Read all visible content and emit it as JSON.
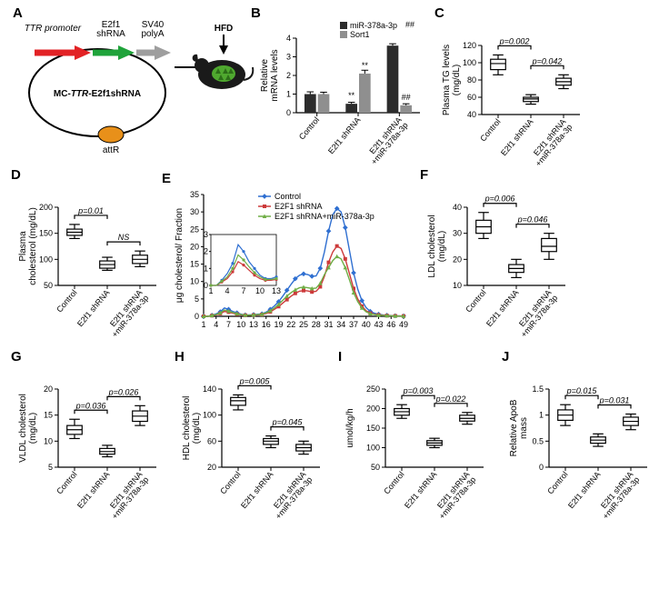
{
  "colors": {
    "control": "#2f6fd1",
    "e2f1": "#cc3a3a",
    "mir": "#6fae46",
    "bar_black": "#2c2c2c",
    "bar_grey": "#8f8f8f",
    "plasmid_red": "#e22225",
    "plasmid_green": "#1fa33a",
    "plasmid_grey": "#9e9e9e",
    "attR": "#e8901a"
  },
  "groups": [
    "Control",
    "E2f1 shRNA",
    "E2f1 shRNA\n+miR-378a-3p"
  ],
  "panelA": {
    "ttr": "TTR promoter",
    "e2f1": "E2f1\nshRNA",
    "sv40": "SV40\npolyA",
    "hfd": "HFD",
    "mc": "MC-TTR-E2f1shRNA",
    "attR": "attR"
  },
  "panelB": {
    "ylabel": "Relative\nmRNA levels",
    "legend1": "miR-378a-3p",
    "legend2": "Sort1",
    "ylim": [
      0,
      4
    ],
    "yticks": [
      0,
      1,
      2,
      3,
      4
    ],
    "data": {
      "mir": {
        "mean": [
          1.0,
          0.48,
          3.6
        ],
        "err": [
          0.12,
          0.08,
          0.1
        ]
      },
      "sort": {
        "mean": [
          1.0,
          2.1,
          0.4
        ],
        "err": [
          0.1,
          0.18,
          0.08
        ]
      }
    },
    "annot": {
      "hash_top": "##",
      "stars": "**",
      "hash_low": "##"
    }
  },
  "panelC": {
    "ylabel": "Plasma TG levels\n(mg/dL)",
    "ylim": [
      40,
      120
    ],
    "yticks": [
      40,
      60,
      80,
      100,
      120
    ],
    "boxes": [
      {
        "min": 86,
        "q1": 92,
        "med": 99,
        "q3": 104,
        "max": 109
      },
      {
        "min": 52,
        "q1": 55,
        "med": 58,
        "q3": 60,
        "max": 63
      },
      {
        "min": 70,
        "q1": 74,
        "med": 78,
        "q3": 82,
        "max": 86
      }
    ],
    "p": [
      "p=0.002",
      "p=0.042"
    ]
  },
  "panelD": {
    "ylabel": "Plasma\ncholesterol (mg/dL)",
    "ylim": [
      50,
      200
    ],
    "yticks": [
      50,
      100,
      150,
      200
    ],
    "boxes": [
      {
        "min": 140,
        "q1": 146,
        "med": 152,
        "q3": 158,
        "max": 167
      },
      {
        "min": 79,
        "q1": 83,
        "med": 90,
        "q3": 97,
        "max": 104
      },
      {
        "min": 86,
        "q1": 92,
        "med": 100,
        "q3": 108,
        "max": 116
      }
    ],
    "p": [
      "p=0.01",
      "NS"
    ]
  },
  "panelE": {
    "ylabel": "μg cholesterol/ Fraction",
    "ylim": [
      0,
      35
    ],
    "yticks": [
      0,
      5,
      10,
      15,
      20,
      25,
      30,
      35
    ],
    "xticks": [
      1,
      4,
      7,
      10,
      13,
      16,
      19,
      22,
      25,
      28,
      31,
      34,
      37,
      40,
      43,
      46,
      49
    ],
    "inset": {
      "ylim": [
        0,
        3
      ],
      "yticks": [
        0,
        1,
        2,
        3
      ],
      "xticks": [
        1,
        4,
        7,
        10,
        13
      ]
    },
    "series": {
      "control": [
        0,
        0,
        0.3,
        0.7,
        1.3,
        2.4,
        2.0,
        1.4,
        1.0,
        0.6,
        0.4,
        0.4,
        0.5,
        0.6,
        0.7,
        1.2,
        2.0,
        3.0,
        4.2,
        5.8,
        7.5,
        9.2,
        10.8,
        11.8,
        12.2,
        12.0,
        11.5,
        11.6,
        13.8,
        18.5,
        24.5,
        29.2,
        31.0,
        30.0,
        25.5,
        19.0,
        12.5,
        7.8,
        4.5,
        2.5,
        1.4,
        0.9,
        0.6,
        0.4,
        0.3,
        0.2,
        0.15,
        0.12,
        0.1
      ],
      "e2f1": [
        0,
        0,
        0.2,
        0.4,
        0.8,
        1.4,
        1.2,
        0.9,
        0.6,
        0.4,
        0.3,
        0.3,
        0.35,
        0.4,
        0.5,
        0.8,
        1.3,
        2.0,
        2.8,
        3.8,
        4.8,
        5.8,
        6.6,
        7.2,
        7.4,
        7.3,
        7.0,
        7.2,
        8.5,
        11.5,
        15.5,
        18.5,
        20.2,
        19.5,
        16.5,
        12.3,
        8.0,
        5.0,
        2.9,
        1.6,
        0.9,
        0.6,
        0.4,
        0.3,
        0.2,
        0.15,
        0.12,
        0.1,
        0.08
      ],
      "mir": [
        0,
        0,
        0.25,
        0.5,
        1.0,
        1.8,
        1.5,
        1.1,
        0.75,
        0.5,
        0.35,
        0.35,
        0.4,
        0.5,
        0.6,
        1.0,
        1.6,
        2.4,
        3.4,
        4.6,
        5.8,
        6.8,
        7.6,
        8.2,
        8.4,
        8.2,
        8.0,
        8.1,
        9.5,
        12.0,
        14.0,
        16.0,
        17.2,
        16.5,
        14.0,
        10.5,
        6.8,
        4.2,
        2.4,
        1.3,
        0.75,
        0.5,
        0.33,
        0.25,
        0.18,
        0.13,
        0.1,
        0.08,
        0.07
      ]
    },
    "legend": [
      "Control",
      "E2F1 shRNA",
      "E2F1 shRNA+miR-378a-3p"
    ]
  },
  "panelF": {
    "ylabel": "LDL cholesterol\n(mg/dL)",
    "ylim": [
      10,
      40
    ],
    "yticks": [
      10,
      20,
      30,
      40
    ],
    "boxes": [
      {
        "min": 28,
        "q1": 30,
        "med": 32.5,
        "q3": 35,
        "max": 38
      },
      {
        "min": 13,
        "q1": 15,
        "med": 16.5,
        "q3": 18,
        "max": 20
      },
      {
        "min": 20,
        "q1": 23,
        "med": 25,
        "q3": 28,
        "max": 30
      }
    ],
    "p": [
      "p=0.006",
      "p=0.046"
    ]
  },
  "panelG": {
    "ylabel": "VLDL cholesterol\n(mg/dL)",
    "ylim": [
      5,
      20
    ],
    "yticks": [
      5,
      10,
      15,
      20
    ],
    "boxes": [
      {
        "min": 10.5,
        "q1": 11.3,
        "med": 12.2,
        "q3": 13.0,
        "max": 14.2
      },
      {
        "min": 7.0,
        "q1": 7.5,
        "med": 8.0,
        "q3": 8.6,
        "max": 9.2
      },
      {
        "min": 13.0,
        "q1": 13.8,
        "med": 14.8,
        "q3": 15.8,
        "max": 16.8
      }
    ],
    "p": [
      "p=0.036",
      "p=0.026"
    ]
  },
  "panelH": {
    "ylabel": "HDL cholesterol\n(mg/dL)",
    "ylim": [
      20,
      140
    ],
    "yticks": [
      20,
      60,
      100,
      140
    ],
    "boxes": [
      {
        "min": 108,
        "q1": 115,
        "med": 122,
        "q3": 127,
        "max": 131
      },
      {
        "min": 50,
        "q1": 55,
        "med": 60,
        "q3": 64,
        "max": 68
      },
      {
        "min": 40,
        "q1": 45,
        "med": 50,
        "q3": 55,
        "max": 60
      }
    ],
    "p": [
      "p=0.005",
      "p=0.045"
    ]
  },
  "panelI": {
    "ylabel": "umol/kg/h",
    "ylim": [
      50,
      250
    ],
    "yticks": [
      50,
      100,
      150,
      200,
      250
    ],
    "boxes": [
      {
        "min": 175,
        "q1": 183,
        "med": 192,
        "q3": 200,
        "max": 210
      },
      {
        "min": 100,
        "q1": 106,
        "med": 112,
        "q3": 118,
        "max": 124
      },
      {
        "min": 160,
        "q1": 168,
        "med": 175,
        "q3": 183,
        "max": 190
      }
    ],
    "p": [
      "p=0.003",
      "p=0.022"
    ]
  },
  "panelJ": {
    "ylabel": "Relative ApoB\nmass",
    "ylim": [
      0,
      1.5
    ],
    "yticks": [
      0,
      0.5,
      1.0,
      1.5
    ],
    "boxes": [
      {
        "min": 0.8,
        "q1": 0.9,
        "med": 1.0,
        "q3": 1.1,
        "max": 1.2
      },
      {
        "min": 0.4,
        "q1": 0.46,
        "med": 0.52,
        "q3": 0.58,
        "max": 0.64
      },
      {
        "min": 0.72,
        "q1": 0.8,
        "med": 0.88,
        "q3": 0.96,
        "max": 1.02
      }
    ],
    "p": [
      "p=0.015",
      "p=0.031"
    ]
  }
}
